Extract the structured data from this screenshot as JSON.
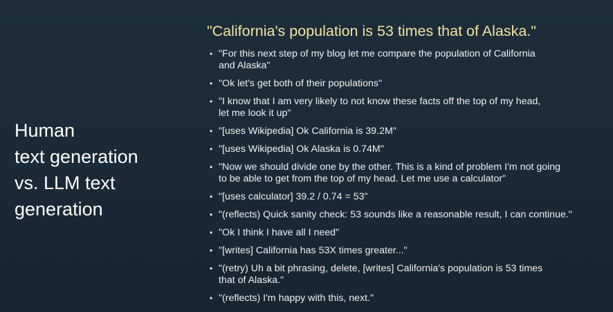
{
  "slide": {
    "left_title_lines": [
      "Human",
      "text generation",
      "vs. LLM text",
      "generation"
    ],
    "quote_title": "\"California's population is 53 times that of Alaska.\"",
    "bullet_glyph": "•",
    "bullets": [
      {
        "lines": [
          "\"For this next step of my blog let me compare the population of California",
          "and Alaska\""
        ]
      },
      {
        "lines": [
          "\"Ok let's get both of their populations\""
        ]
      },
      {
        "lines": [
          "\"I know that I am very likely to not know these facts off the top of my head,",
          "let me look it up\""
        ]
      },
      {
        "lines": [
          "\"[uses Wikipedia] Ok California is 39.2M\""
        ]
      },
      {
        "lines": [
          "\"[uses Wikipedia] Ok Alaska is 0.74M\""
        ]
      },
      {
        "lines": [
          "\"Now we should divide one by the other. This is a kind of problem I'm not going",
          "to be able to get from the top of my head. Let me use a calculator\""
        ]
      },
      {
        "lines": [
          "\"[uses calculator] 39.2 / 0.74 = 53\""
        ]
      },
      {
        "lines": [
          "\"(reflects) Quick sanity check: 53 sounds like a reasonable result, I can continue.\""
        ]
      },
      {
        "lines": [
          "\"Ok I think I have all I need\""
        ]
      },
      {
        "lines": [
          "\"[writes] California has 53X times greater...\""
        ]
      },
      {
        "lines": [
          "\"(retry) Uh a bit phrasing, delete, [writes] California's population is 53 times",
          "that of Alaska.\""
        ]
      },
      {
        "lines": [
          "\"(reflects) I'm happy with this, next.\""
        ]
      }
    ]
  }
}
